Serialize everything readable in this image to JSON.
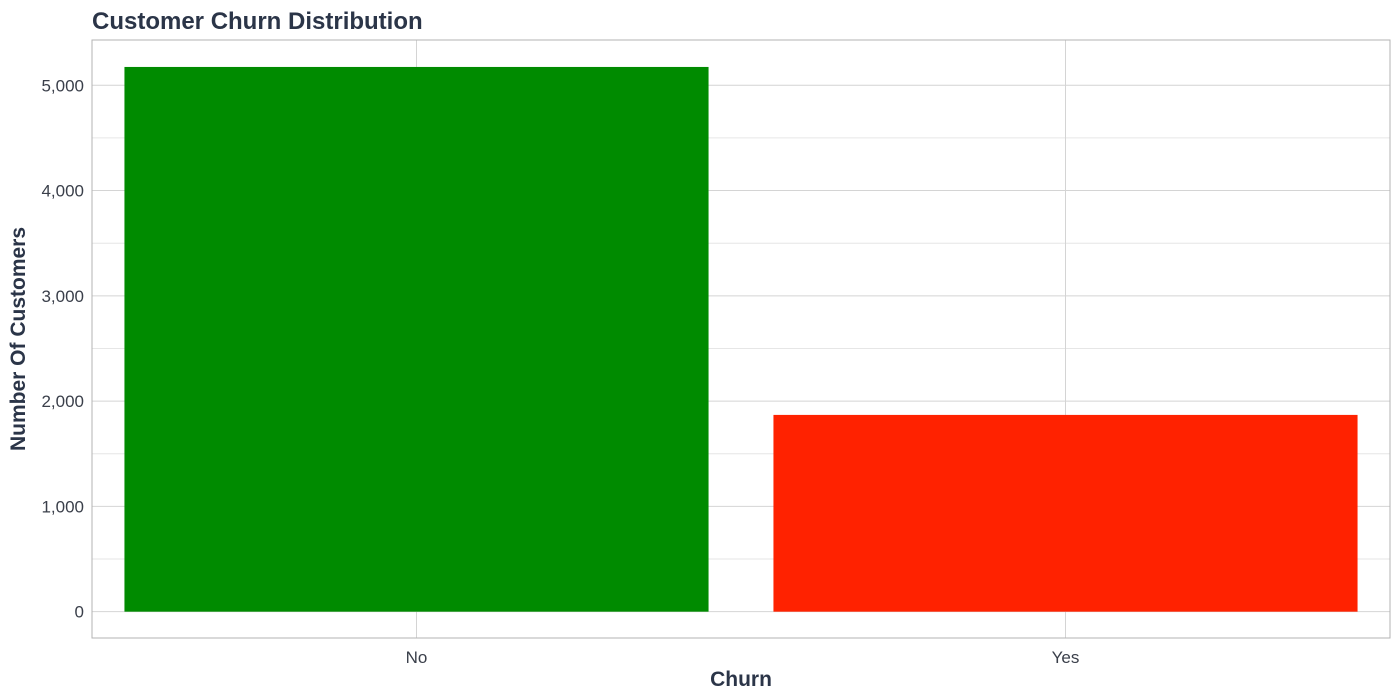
{
  "chart_data": {
    "type": "bar",
    "title": "Customer Churn Distribution",
    "xlabel": "Churn",
    "ylabel": "Number Of Customers",
    "categories": [
      "No",
      "Yes"
    ],
    "values": [
      5174,
      1869
    ],
    "colors": [
      "#008b00",
      "#ff2200"
    ],
    "ylim": [
      -250,
      5430
    ],
    "yticks": [
      0,
      1000,
      2000,
      3000,
      4000,
      5000
    ],
    "ytick_labels": [
      "0",
      "1,000",
      "2,000",
      "3,000",
      "4,000",
      "5,000"
    ],
    "grid": true,
    "legend": "none"
  }
}
